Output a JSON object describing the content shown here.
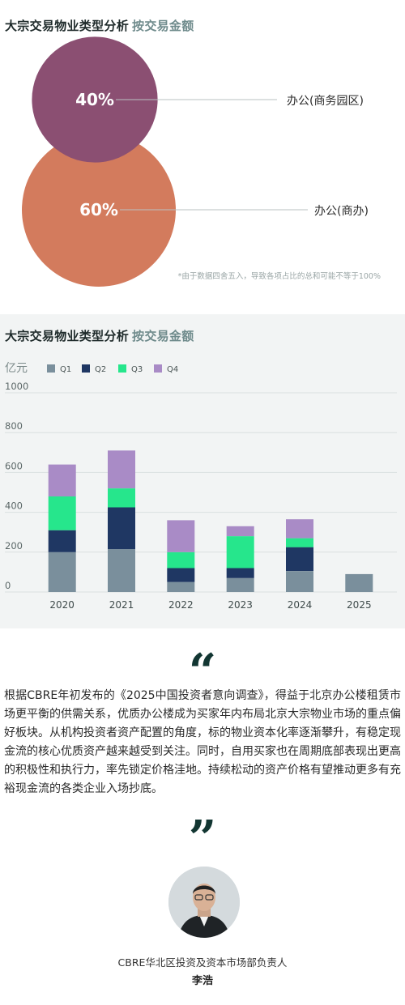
{
  "section1": {
    "title": "大宗交易物业类型分析",
    "subtitle": "按交易金额",
    "footnote": "*由于数据四舍五入，导致各项占比的总和可能不等于100%"
  },
  "section2": {
    "title": "大宗交易物业类型分析",
    "subtitle": "按交易金额"
  },
  "colors": {
    "purple_bubble": "#8b4f72",
    "orange_bubble": "#d37b5d",
    "q1": "#7a8f9c",
    "q2": "#1f3763",
    "q3": "#26e68c",
    "q4": "#a98bc6",
    "quote": "#123632"
  },
  "chart_data": [
    {
      "type": "pie",
      "title": "大宗交易物业类型分析 按交易金额",
      "categories": [
        "办公(商务园区)",
        "办公(商办)"
      ],
      "values": [
        40,
        60
      ],
      "labels": [
        "40%",
        "60%"
      ],
      "note": "proportional bubbles"
    },
    {
      "type": "bar",
      "stacked": true,
      "title": "大宗交易物业类型分析 按交易金额",
      "ylabel": "亿元",
      "xlabel": "",
      "ylim": [
        0,
        1000
      ],
      "yticks": [
        0,
        200,
        400,
        600,
        800,
        1000
      ],
      "categories": [
        "2020",
        "2021",
        "2022",
        "2023",
        "2024",
        "2025"
      ],
      "series": [
        {
          "name": "Q1",
          "values": [
            200,
            215,
            50,
            70,
            105,
            90
          ]
        },
        {
          "name": "Q2",
          "values": [
            110,
            210,
            70,
            50,
            120,
            0
          ]
        },
        {
          "name": "Q3",
          "values": [
            170,
            95,
            80,
            160,
            45,
            0
          ]
        },
        {
          "name": "Q4",
          "values": [
            160,
            190,
            160,
            50,
            95,
            0
          ]
        }
      ],
      "legend_position": "top-left",
      "grid": true
    }
  ],
  "quote": {
    "open_mark": "“",
    "close_mark": "”",
    "text": "根据CBRE年初发布的《2025中国投资者意向调查》，得益于北京办公楼租赁市场更平衡的供需关系，优质办公楼成为买家年内布局北京大宗物业市场的重点偏好板块。从机构投资者资产配置的角度，标的物业资本化率逐渐攀升，有稳定现金流的核心优质资产越来越受到关注。同时，自用买家也在周期底部表现出更高的积极性和执行力，率先锁定价格洼地。持续松动的资产价格有望推动更多有充裕现金流的各类企业入场抄底。"
  },
  "author": {
    "title": "CBRE华北区投资及资本市场部负责人",
    "name": "李浩"
  }
}
